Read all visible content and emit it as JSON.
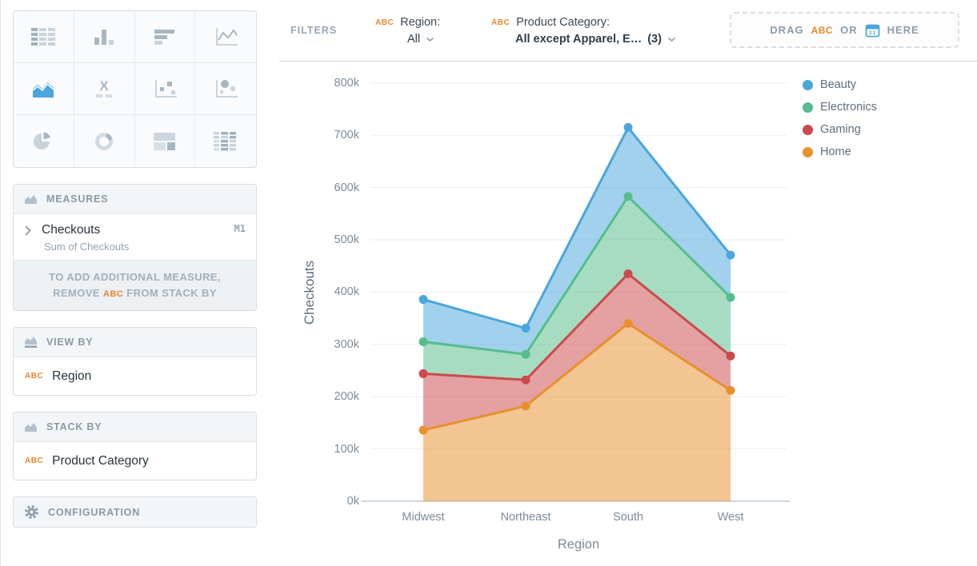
{
  "chart_picker": {
    "tiles": [
      {
        "name": "table",
        "selected": false
      },
      {
        "name": "bar-chart",
        "selected": false
      },
      {
        "name": "horizontal-bar-chart",
        "selected": false
      },
      {
        "name": "line-chart",
        "selected": false
      },
      {
        "name": "area-chart",
        "selected": true
      },
      {
        "name": "kpi-x",
        "selected": false
      },
      {
        "name": "scatter-plot",
        "selected": false
      },
      {
        "name": "bubble-chart",
        "selected": false
      },
      {
        "name": "pie-chart",
        "selected": false
      },
      {
        "name": "donut-chart",
        "selected": false
      },
      {
        "name": "treemap",
        "selected": false
      },
      {
        "name": "pivot-table",
        "selected": false
      }
    ]
  },
  "panels": {
    "measures": {
      "title": "MEASURES",
      "icon": "area-mountain-icon",
      "item": {
        "label": "Checkouts",
        "sublabel": "Sum of Checkouts",
        "badge": "M1"
      },
      "note_line1": "TO ADD ADDITIONAL MEASURE,",
      "note_line2_pre": "REMOVE",
      "note_abc": "ABC",
      "note_line2_post": "FROM STACK BY"
    },
    "view_by": {
      "title": "VIEW BY",
      "icon": "area-mountain-underline-icon",
      "item": {
        "tag": "ABC",
        "label": "Region"
      }
    },
    "stack_by": {
      "title": "STACK BY",
      "icon": "area-mountain-icon",
      "item": {
        "tag": "ABC",
        "label": "Product Category"
      }
    },
    "configuration": {
      "title": "CONFIGURATION",
      "icon": "gear-icon"
    }
  },
  "filters": {
    "label": "FILTERS",
    "region": {
      "tag": "ABC",
      "name": "Region:",
      "value": "All"
    },
    "product_category": {
      "tag": "ABC",
      "name": "Product Category:",
      "value": "All except Apparel, E…",
      "count": "(3)"
    },
    "dropzone": {
      "drag": "DRAG",
      "tag": "ABC",
      "or": "OR",
      "icon": "calendar-icon",
      "here": "HERE"
    }
  },
  "colors": {
    "accent_orange": "#e8872b",
    "accent_blue": "#4aa6db",
    "grid_line": "#e9edf1",
    "axis_line": "#c2cdd5"
  },
  "chart_data": {
    "type": "area",
    "stacked": true,
    "x_categories": [
      "Midwest",
      "Northeast",
      "South",
      "West"
    ],
    "xlabel": "Region",
    "ylabel": "Checkouts",
    "ylim": [
      0,
      800000
    ],
    "ytick_step": 100000,
    "ytick_labels": [
      "0k",
      "100k",
      "200k",
      "300k",
      "400k",
      "500k",
      "600k",
      "700k",
      "800k"
    ],
    "grid": "horizontal",
    "legend_position": "top-right",
    "stack_order_bottom_to_top": [
      "Home",
      "Gaming",
      "Electronics",
      "Beauty"
    ],
    "series": [
      {
        "name": "Beauty",
        "color": "#4aa6db",
        "values": [
          81000,
          50000,
          132000,
          81000
        ]
      },
      {
        "name": "Electronics",
        "color": "#55bd8a",
        "values": [
          61000,
          49000,
          148000,
          112000
        ]
      },
      {
        "name": "Gaming",
        "color": "#cb4a4b",
        "values": [
          108000,
          50000,
          95000,
          66000
        ]
      },
      {
        "name": "Home",
        "color": "#e8902e",
        "values": [
          136000,
          182000,
          340000,
          212000
        ]
      }
    ],
    "stacked_totals": {
      "Midwest": 386000,
      "Northeast": 331000,
      "South": 715000,
      "West": 471000
    }
  }
}
